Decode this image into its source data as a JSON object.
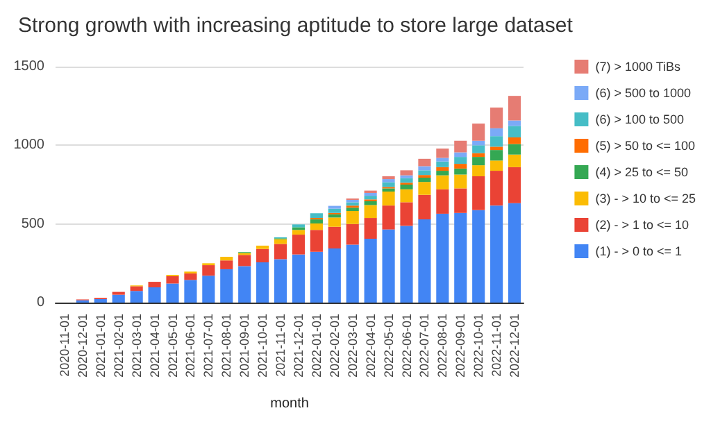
{
  "chart_data": {
    "type": "bar",
    "title": "Strong growth with increasing aptitude to store large dataset",
    "xlabel": "month",
    "categories": [
      "2020-11-01",
      "2020-12-01",
      "2021-01-01",
      "2021-02-01",
      "2021-03-01",
      "2021-04-01",
      "2021-05-01",
      "2021-06-01",
      "2021-07-01",
      "2021-08-01",
      "2021-09-01",
      "2021-10-01",
      "2021-11-01",
      "2021-12-01",
      "2022-01-01",
      "2022-02-01",
      "2022-03-01",
      "2022-04-01",
      "2022-05-01",
      "2022-06-01",
      "2022-07-01",
      "2022-08-01",
      "2022-09-01",
      "2022-10-01",
      "2022-11-01",
      "2022-12-01"
    ],
    "stacked": true,
    "series": [
      {
        "name": "(1) - > 0 to <= 1",
        "color": "#4285f4",
        "values": [
          0,
          15,
          22,
          50,
          74,
          97,
          121,
          144,
          171,
          212,
          232,
          256,
          276,
          306,
          323,
          344,
          368,
          406,
          465,
          488,
          529,
          565,
          570,
          588,
          617,
          632
        ]
      },
      {
        "name": "(2) - > 1 to <= 10",
        "color": "#ea4335",
        "values": [
          0,
          5,
          8,
          18,
          30,
          35,
          47,
          41,
          67,
          56,
          71,
          85,
          97,
          126,
          139,
          138,
          132,
          132,
          152,
          150,
          156,
          155,
          156,
          215,
          221,
          229
        ]
      },
      {
        "name": "(3) - > 10 to <= 25",
        "color": "#fbbc04",
        "values": [
          0,
          0,
          0,
          0,
          5,
          0,
          8,
          12,
          12,
          23,
          12,
          21,
          30,
          30,
          41,
          59,
          82,
          82,
          89,
          82,
          82,
          89,
          88,
          70,
          65,
          80
        ]
      },
      {
        "name": "(4) > 25 to <= 50",
        "color": "#34a853",
        "values": [
          0,
          0,
          0,
          0,
          0,
          0,
          0,
          0,
          0,
          0,
          6,
          0,
          6,
          17,
          26,
          20,
          21,
          24,
          20,
          30,
          27,
          29,
          38,
          53,
          67,
          67
        ]
      },
      {
        "name": "(5) > 50 to <= 100",
        "color": "#ff6d01",
        "values": [
          0,
          0,
          0,
          0,
          0,
          0,
          0,
          0,
          0,
          0,
          0,
          0,
          0,
          0,
          9,
          9,
          14,
          12,
          9,
          12,
          17,
          23,
          30,
          24,
          21,
          42
        ]
      },
      {
        "name": "(6) > 100 to 500",
        "color": "#46bdc6",
        "values": [
          0,
          0,
          0,
          0,
          0,
          0,
          0,
          0,
          0,
          0,
          0,
          0,
          6,
          18,
          30,
          27,
          21,
          23,
          30,
          29,
          30,
          36,
          44,
          50,
          67,
          73
        ]
      },
      {
        "name": "(6) > 500 to 1000",
        "color": "#7baaf7",
        "values": [
          0,
          0,
          0,
          0,
          0,
          0,
          0,
          0,
          0,
          0,
          0,
          0,
          0,
          0,
          0,
          18,
          15,
          18,
          20,
          18,
          26,
          23,
          29,
          29,
          50,
          35
        ]
      },
      {
        "name": "(7) > 1000 TiBs",
        "color": "#e67c73",
        "values": [
          0,
          0,
          0,
          0,
          0,
          0,
          0,
          0,
          0,
          0,
          0,
          0,
          0,
          0,
          0,
          0,
          9,
          15,
          18,
          32,
          47,
          59,
          74,
          109,
          132,
          156
        ]
      }
    ],
    "ylim": [
      0,
      1500
    ],
    "yticks": [
      0,
      500,
      1000,
      1500
    ],
    "grid": "y",
    "legend": "right"
  }
}
